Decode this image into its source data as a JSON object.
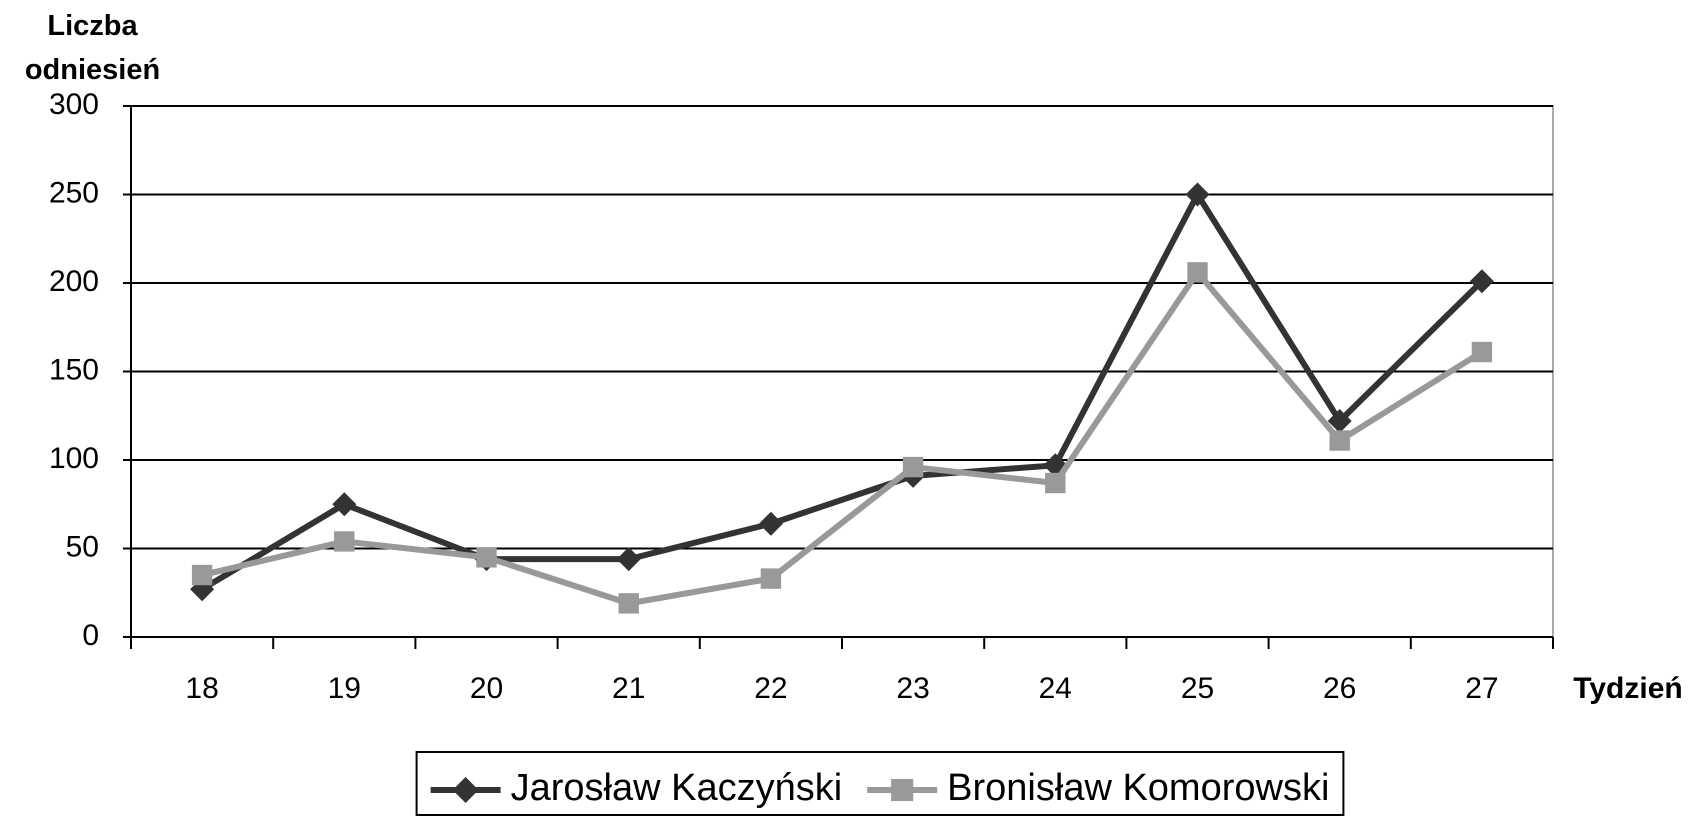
{
  "chart_data": {
    "type": "line",
    "y_axis_label": "Liczba odniesień",
    "x_axis_label": "Tydzień",
    "categories": [
      "18",
      "19",
      "20",
      "21",
      "22",
      "23",
      "24",
      "25",
      "26",
      "27"
    ],
    "series": [
      {
        "name": "Jarosław Kaczyński",
        "color": "#333333",
        "marker": "diamond",
        "values": [
          27,
          75,
          44,
          44,
          64,
          91,
          97,
          250,
          122,
          201
        ]
      },
      {
        "name": "Bronisław Komorowski",
        "color": "#999999",
        "marker": "square",
        "values": [
          35,
          54,
          45,
          19,
          33,
          96,
          87,
          206,
          111,
          161
        ]
      }
    ],
    "ylim": [
      0,
      300
    ],
    "yticks": [
      0,
      50,
      100,
      150,
      200,
      250,
      300
    ],
    "grid": true,
    "legend": "bottom"
  }
}
